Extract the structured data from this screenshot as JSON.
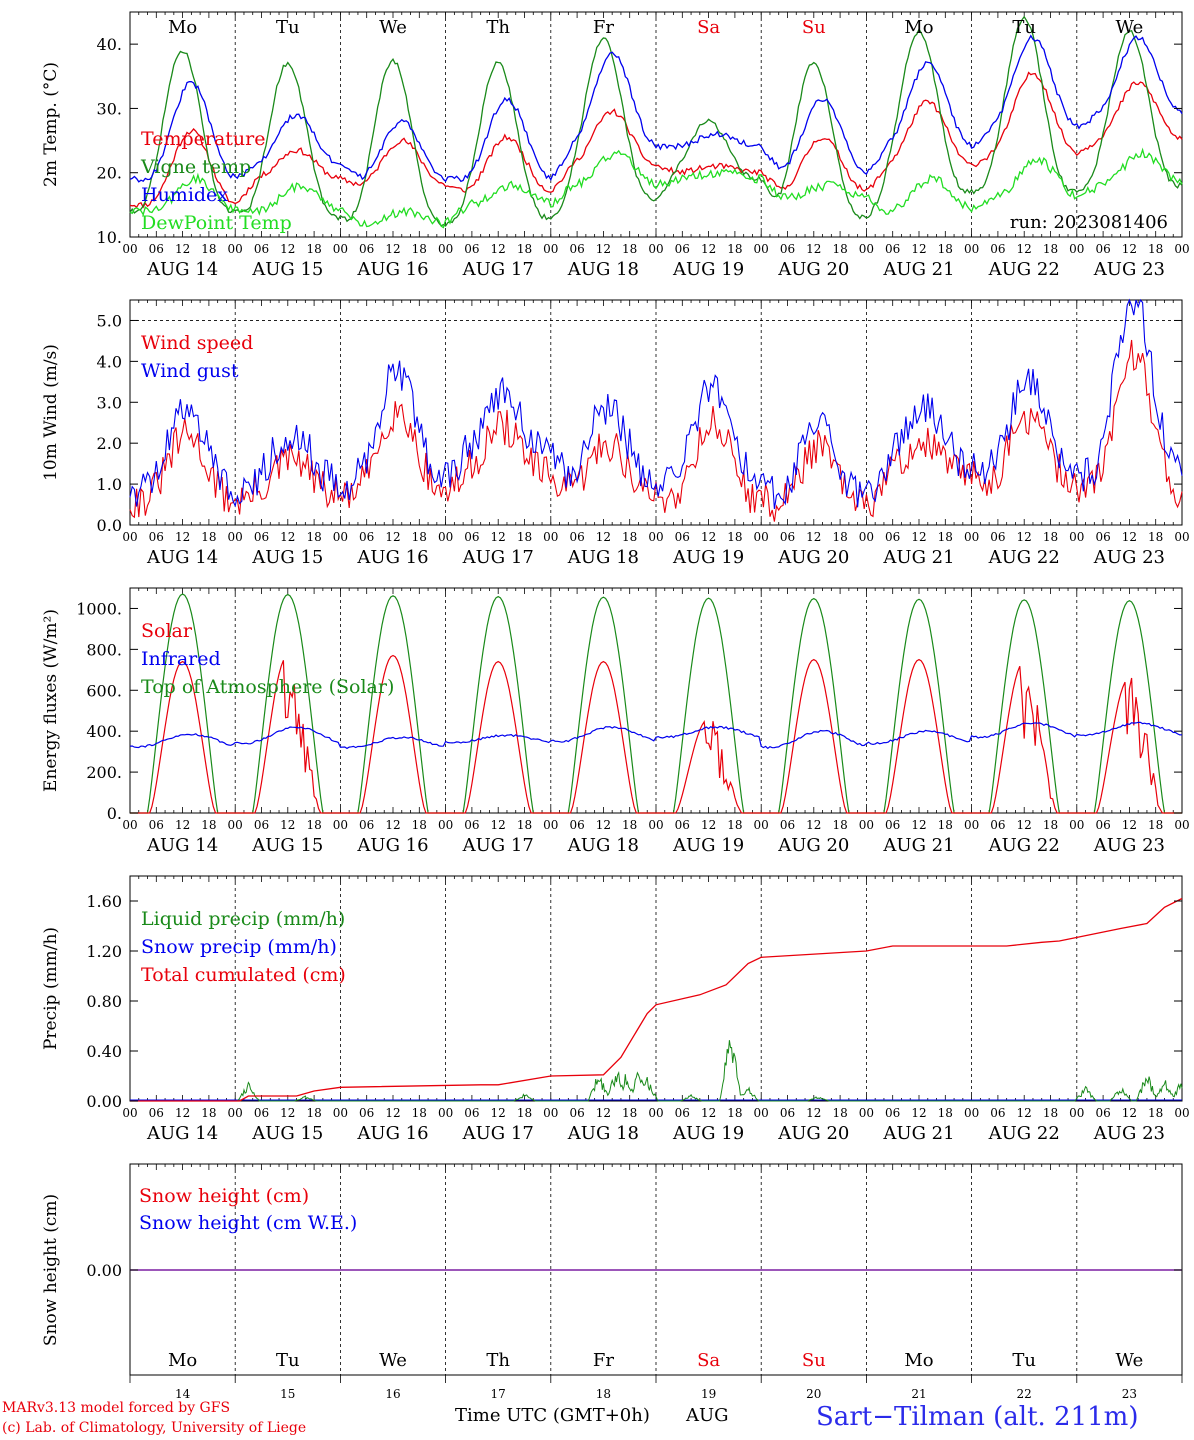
{
  "days": [
    "AUG 14",
    "AUG 15",
    "AUG 16",
    "AUG 17",
    "AUG 18",
    "AUG 19",
    "AUG 20",
    "AUG 21",
    "AUG 22",
    "AUG 23"
  ],
  "hour_ticks": [
    "00",
    "06",
    "12",
    "18"
  ],
  "end_tick": "00",
  "weekdays": [
    {
      "label": "Mo",
      "color": "#000000"
    },
    {
      "label": "Tu",
      "color": "#000000"
    },
    {
      "label": "We",
      "color": "#000000"
    },
    {
      "label": "Th",
      "color": "#000000"
    },
    {
      "label": "Fr",
      "color": "#000000"
    },
    {
      "label": "Sa",
      "color": "#e8000b"
    },
    {
      "label": "Su",
      "color": "#e8000b"
    },
    {
      "label": "Mo",
      "color": "#000000"
    },
    {
      "label": "Tu",
      "color": "#000000"
    },
    {
      "label": "We",
      "color": "#000000"
    }
  ],
  "bottom_day_numbers": [
    "14",
    "15",
    "16",
    "17",
    "18",
    "19",
    "20",
    "21",
    "22",
    "23"
  ],
  "footer": {
    "model": "MARv3.13 model forced by GFS",
    "lab": "(c) Lab. of Climatology, University of Liege",
    "xlabel": "Time UTC (GMT+0h)",
    "month": "AUG",
    "station": "Sart−Tilman (alt. 211m)"
  },
  "chart_data": [
    {
      "type": "line",
      "id": "temp",
      "ylabel": "2m Temp. (°C)",
      "ylim": [
        10,
        45
      ],
      "yticks": [
        "10.",
        "20.",
        "30.",
        "40."
      ],
      "annotation": "run: 2023081406",
      "x": "hours since AUG 14 00 UTC (0-240)",
      "series": [
        {
          "name": "Temperature",
          "color": "#e8000b",
          "daily": [
            [
              15,
              26.5
            ],
            [
              19,
              23.5
            ],
            [
              18,
              25
            ],
            [
              17,
              25.5
            ],
            [
              21,
              29.5
            ],
            [
              20,
              21
            ],
            [
              17,
              25.5
            ],
            [
              21,
              31
            ],
            [
              23,
              35.5
            ],
            [
              25,
              34
            ]
          ]
        },
        {
          "name": "Vigne temp",
          "color": "#1a8a1a",
          "daily": [
            [
              14,
              39
            ],
            [
              13,
              37
            ],
            [
              12,
              37.5
            ],
            [
              13,
              37
            ],
            [
              16,
              41
            ],
            [
              19,
              28
            ],
            [
              13,
              37
            ],
            [
              17,
              42
            ],
            [
              17,
              44
            ],
            [
              18,
              42
            ]
          ]
        },
        {
          "name": "Humidex",
          "color": "#0000ee",
          "daily": [
            [
              19,
              34
            ],
            [
              21,
              29
            ],
            [
              19,
              28
            ],
            [
              19,
              31.5
            ],
            [
              24,
              38.5
            ],
            [
              24,
              26
            ],
            [
              20,
              31.5
            ],
            [
              24,
              37
            ],
            [
              27,
              41
            ],
            [
              29,
              41
            ]
          ]
        },
        {
          "name": "DewPoint Temp",
          "color": "#22dd22",
          "daily": [
            [
              14,
              19
            ],
            [
              14,
              18
            ],
            [
              12,
              14
            ],
            [
              15,
              18
            ],
            [
              18,
              23
            ],
            [
              19,
              20
            ],
            [
              16,
              18
            ],
            [
              14,
              19
            ],
            [
              16,
              22
            ],
            [
              18,
              23
            ]
          ]
        }
      ]
    },
    {
      "type": "line",
      "id": "wind",
      "ylabel": "10m Wind (m/s)",
      "ylim": [
        0,
        5.5
      ],
      "yticks": [
        "0.0",
        "1.0",
        "2.0",
        "3.0",
        "4.0",
        "5.0"
      ],
      "series": [
        {
          "name": "Wind speed",
          "color": "#e8000b",
          "daily": [
            [
              0.6,
              2.2
            ],
            [
              0.7,
              1.6
            ],
            [
              0.8,
              2.8
            ],
            [
              1.2,
              2.4
            ],
            [
              0.7,
              2.0
            ],
            [
              0.6,
              2.5
            ],
            [
              0.4,
              1.9
            ],
            [
              1.2,
              2.0
            ],
            [
              1.0,
              2.6
            ],
            [
              0.8,
              4.2
            ]
          ]
        },
        {
          "name": "Wind gust",
          "color": "#0000ee",
          "daily": [
            [
              0.9,
              2.9
            ],
            [
              1.0,
              2.3
            ],
            [
              1.1,
              3.8
            ],
            [
              1.7,
              3.2
            ],
            [
              1.0,
              2.9
            ],
            [
              1.0,
              3.4
            ],
            [
              0.6,
              2.5
            ],
            [
              1.5,
              2.8
            ],
            [
              1.3,
              3.5
            ],
            [
              1.2,
              5.5
            ]
          ]
        }
      ]
    },
    {
      "type": "line",
      "id": "energy",
      "ylabel": "Energy fluxes (W/m²)",
      "ylim": [
        0,
        1100
      ],
      "yticks": [
        "0.",
        "200.",
        "400.",
        "600.",
        "800.",
        "1000."
      ],
      "series": [
        {
          "name": "Solar",
          "color": "#e8000b",
          "daily_peak": [
            740,
            770,
            770,
            740,
            740,
            460,
            750,
            750,
            740,
            660
          ]
        },
        {
          "name": "Infrared",
          "color": "#0000ee",
          "daily_range": [
            [
              325,
              385
            ],
            [
              340,
              420
            ],
            [
              320,
              370
            ],
            [
              345,
              380
            ],
            [
              350,
              420
            ],
            [
              370,
              420
            ],
            [
              320,
              400
            ],
            [
              340,
              400
            ],
            [
              370,
              440
            ],
            [
              380,
              440
            ]
          ]
        },
        {
          "name": "Top of Atmosphere (Solar)",
          "color": "#1a8a1a",
          "daily_peak": [
            1070,
            1068,
            1062,
            1058,
            1055,
            1050,
            1048,
            1045,
            1042,
            1038
          ]
        }
      ]
    },
    {
      "type": "line",
      "id": "precip",
      "ylabel": "Precip (mm/h)",
      "ylim": [
        0,
        1.8
      ],
      "yticks": [
        "0.00",
        "0.40",
        "0.80",
        "1.20",
        "1.60"
      ],
      "series": [
        {
          "name": "Liquid precip (mm/h)",
          "color": "#1a8a1a",
          "spikes": [
            [
              27,
              0.17
            ],
            [
              40,
              0.04
            ],
            [
              90,
              0.06
            ],
            [
              107,
              0.25
            ],
            [
              111,
              0.3
            ],
            [
              113,
              0.22
            ],
            [
              116,
              0.28
            ],
            [
              118,
              0.2
            ],
            [
              128,
              0.05
            ],
            [
              137,
              0.62
            ],
            [
              141,
              0.13
            ],
            [
              157,
              0.04
            ],
            [
              218,
              0.12
            ],
            [
              226,
              0.12
            ],
            [
              232,
              0.25
            ],
            [
              236,
              0.2
            ],
            [
              240,
              0.2
            ]
          ]
        },
        {
          "name": "Snow precip (mm/h)",
          "color": "#0000ee",
          "values": [
            0
          ]
        },
        {
          "name": "Total cumulated (cm)",
          "color": "#e8000b",
          "x": [
            0,
            25,
            27,
            38,
            42,
            48,
            80,
            84,
            96,
            108,
            112,
            118,
            120,
            130,
            136,
            141,
            144,
            168,
            174,
            200,
            208,
            212,
            226,
            232,
            236,
            240
          ],
          "values": [
            0,
            0,
            0.04,
            0.04,
            0.08,
            0.11,
            0.13,
            0.13,
            0.2,
            0.21,
            0.35,
            0.7,
            0.77,
            0.85,
            0.93,
            1.1,
            1.15,
            1.2,
            1.24,
            1.24,
            1.27,
            1.28,
            1.38,
            1.42,
            1.55,
            1.62
          ]
        }
      ]
    },
    {
      "type": "line",
      "id": "snow",
      "ylabel": "Snow height (cm)",
      "yticks": [
        "0.00"
      ],
      "series": [
        {
          "name": "Snow height (cm)",
          "color": "#e8000b",
          "values": [
            0
          ]
        },
        {
          "name": "Snow height (cm W.E.)",
          "color": "#0000ee",
          "values": [
            0
          ]
        }
      ]
    }
  ]
}
